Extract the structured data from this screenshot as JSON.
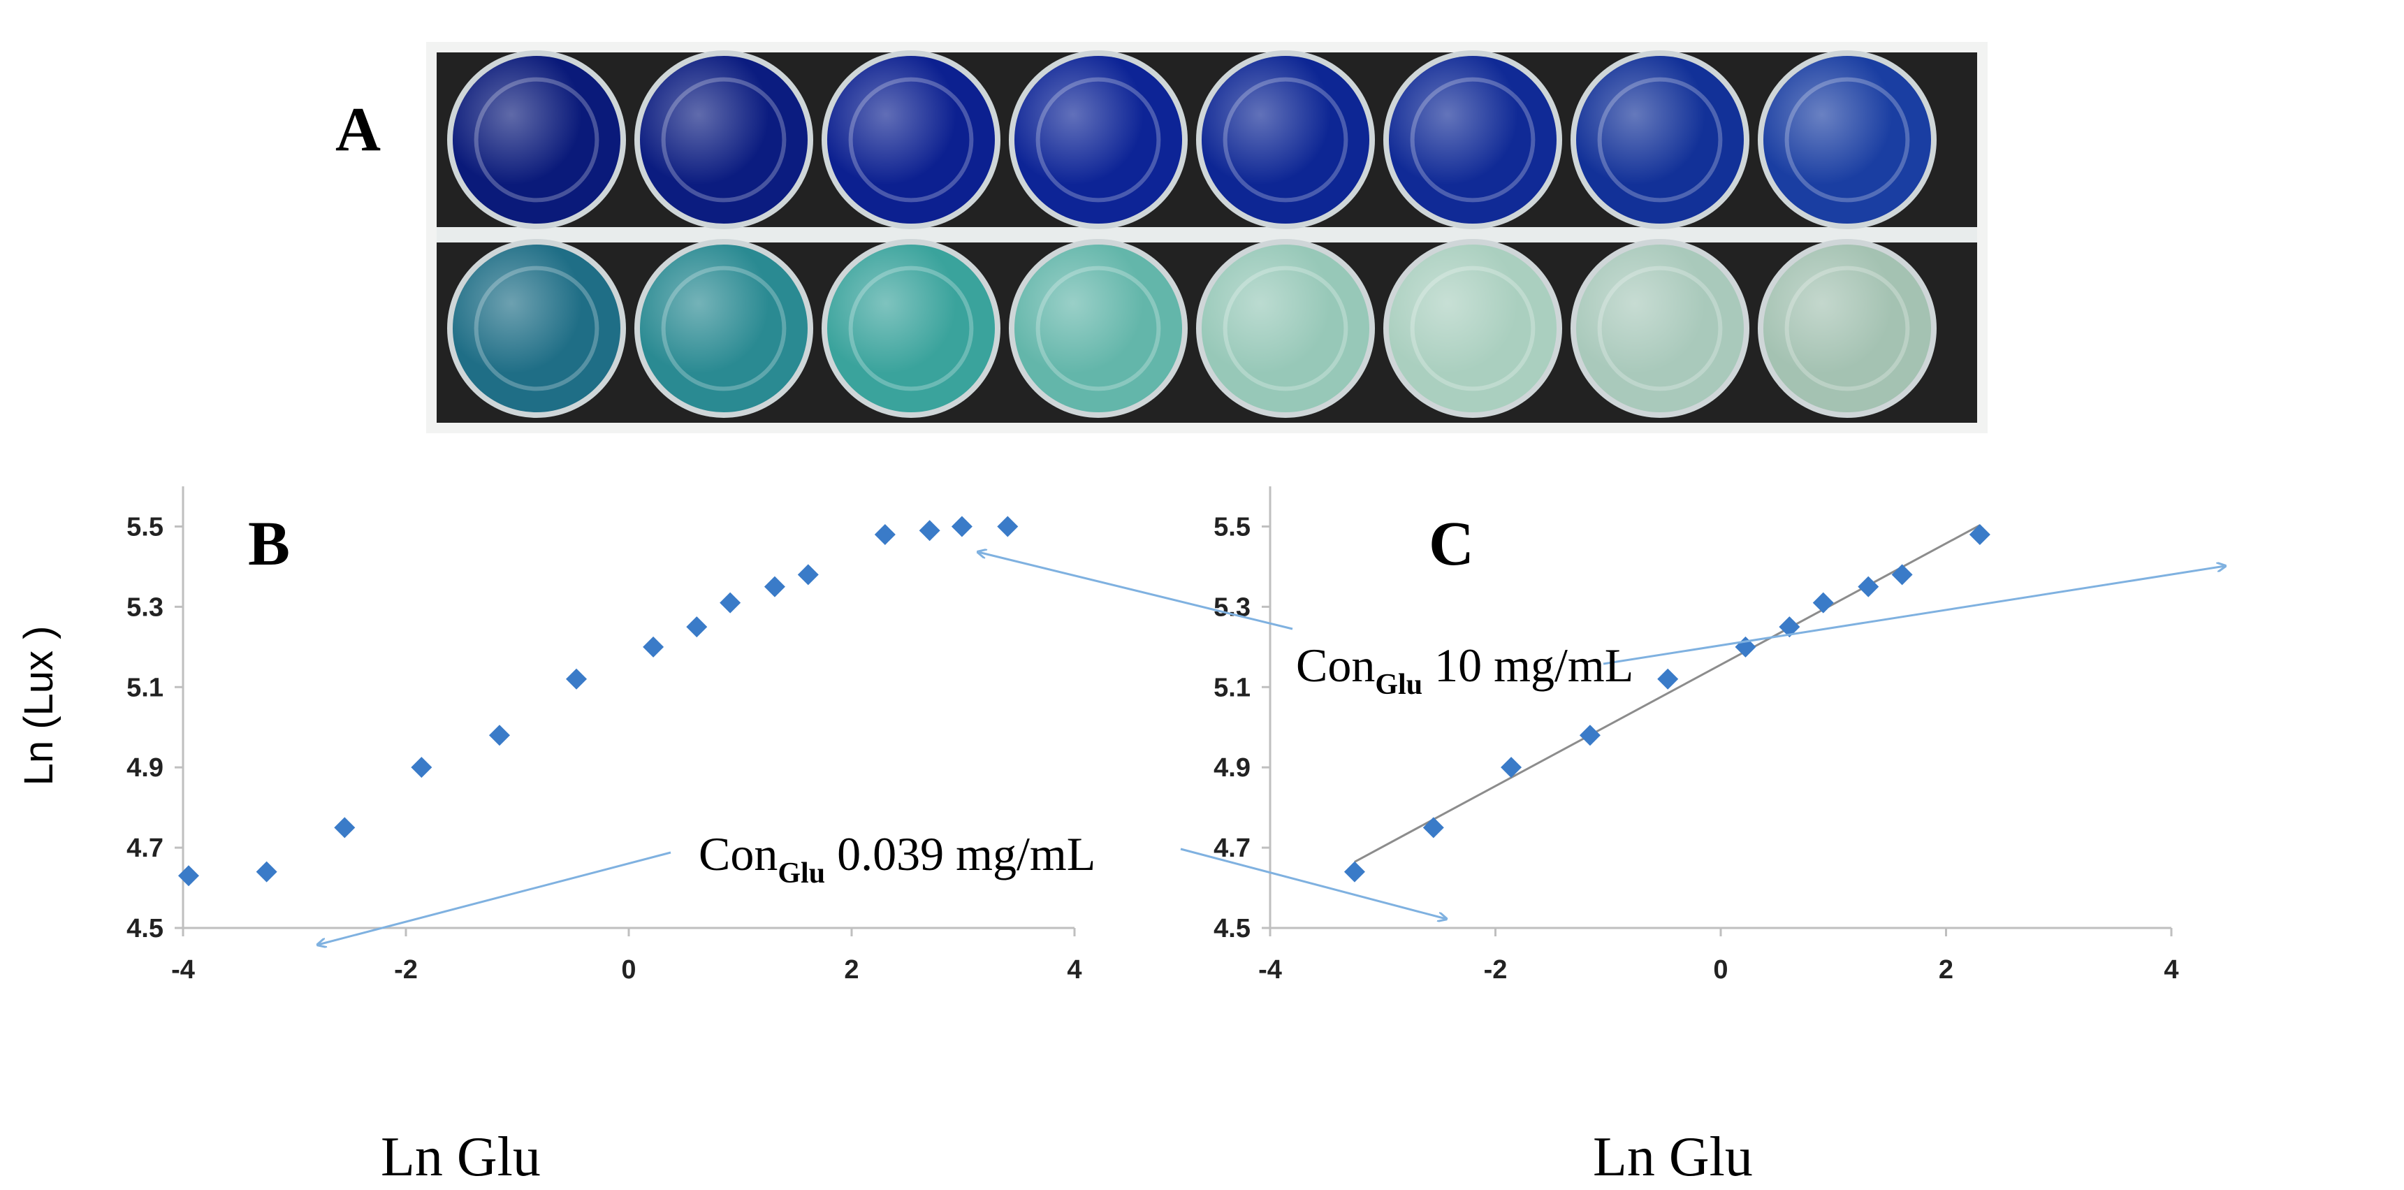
{
  "panels": {
    "A": {
      "label": "A"
    },
    "B": {
      "label": "B"
    },
    "C": {
      "label": "C"
    }
  },
  "well_plate": {
    "top_row_colors": [
      "#0a1a7a",
      "#0b1c80",
      "#0c2090",
      "#0d2496",
      "#0d2694",
      "#102a96",
      "#123198",
      "#1a3ea2"
    ],
    "bottom_row_colors": [
      "#1f6e86",
      "#2a8a92",
      "#3aa39c",
      "#63b6aa",
      "#97c8b8",
      "#aacfbf",
      "#a9c9bb",
      "#a4c2b2"
    ]
  },
  "annotations": {
    "con_high": {
      "prefix": "Con",
      "sub": "Glu",
      "value": " 10 mg/mL"
    },
    "con_low": {
      "prefix": "Con",
      "sub": "Glu",
      "value": " 0.039 mg/mL"
    }
  },
  "colors": {
    "marker": "#3a7bc8",
    "arrow": "#7fb1e0",
    "axis": "#bfbfbf",
    "trendline": "#8c8c8c",
    "plate_bg": "#222222"
  },
  "chart_data": [
    {
      "panel": "B",
      "type": "scatter",
      "xlabel": "Ln  Glu",
      "ylabel": "Ln (Lux )",
      "xlim": [
        -4,
        4
      ],
      "ylim": [
        4.5,
        5.6
      ],
      "xticks": [
        "-4",
        "-2",
        "0",
        "2",
        "4"
      ],
      "yticks": [
        "4.5",
        "4.7",
        "4.9",
        "5.1",
        "5.3",
        "5.5"
      ],
      "x": [
        -3.95,
        -3.25,
        -2.55,
        -1.86,
        -1.16,
        -0.47,
        0.22,
        0.61,
        0.91,
        1.31,
        1.61,
        2.3,
        2.7,
        2.99,
        3.4
      ],
      "y": [
        4.63,
        4.64,
        4.75,
        4.9,
        4.98,
        5.12,
        5.2,
        5.25,
        5.31,
        5.35,
        5.38,
        5.48,
        5.49,
        5.5,
        5.5
      ]
    },
    {
      "panel": "C",
      "type": "scatter",
      "xlabel": "Ln  Glu",
      "ylabel": "",
      "xlim": [
        -4,
        4
      ],
      "ylim": [
        4.5,
        5.6
      ],
      "xticks": [
        "-4",
        "-2",
        "0",
        "2",
        "4"
      ],
      "yticks": [
        "4.5",
        "4.7",
        "4.9",
        "5.1",
        "5.3",
        "5.5"
      ],
      "trendline": true,
      "x": [
        -3.25,
        -2.55,
        -1.86,
        -1.16,
        -0.47,
        0.22,
        0.61,
        0.91,
        1.31,
        1.61,
        2.3
      ],
      "y": [
        4.64,
        4.75,
        4.9,
        4.98,
        5.12,
        5.2,
        5.25,
        5.31,
        5.35,
        5.38,
        5.48
      ]
    }
  ]
}
